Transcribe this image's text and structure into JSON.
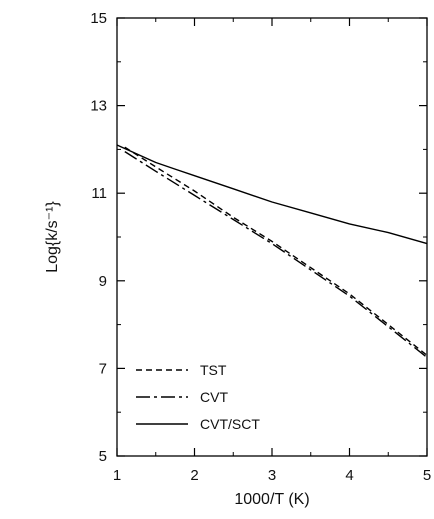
{
  "chart_data": {
    "type": "line",
    "xlabel": "1000/T (K)",
    "ylabel": "Log{k/s⁻¹}",
    "xlim": [
      1,
      5
    ],
    "ylim": [
      5,
      15
    ],
    "x_ticks": [
      "1",
      "2",
      "3",
      "4",
      "5"
    ],
    "y_ticks": [
      "5",
      "7",
      "9",
      "11",
      "13",
      "15"
    ],
    "grid": false,
    "legend_position": "bottom-left",
    "series": [
      {
        "name": "TST",
        "style": "dashed",
        "x": [
          1.1,
          1.5,
          2.0,
          2.5,
          3.0,
          3.5,
          4.0,
          4.5,
          5.0
        ],
        "y": [
          12.05,
          11.6,
          11.05,
          10.45,
          9.9,
          9.3,
          8.7,
          8.0,
          7.3
        ]
      },
      {
        "name": "CVT",
        "style": "dash-dot",
        "x": [
          1.1,
          1.5,
          2.0,
          2.5,
          3.0,
          3.5,
          4.0,
          4.5,
          5.0
        ],
        "y": [
          11.95,
          11.5,
          10.95,
          10.4,
          9.85,
          9.25,
          8.65,
          7.95,
          7.25
        ]
      },
      {
        "name": "CVT/SCT",
        "style": "solid",
        "x": [
          1.0,
          1.25,
          1.5,
          1.75,
          2.0,
          2.5,
          3.0,
          3.5,
          4.0,
          4.5,
          5.0
        ],
        "y": [
          12.1,
          11.9,
          11.7,
          11.55,
          11.4,
          11.1,
          10.8,
          10.55,
          10.3,
          10.1,
          9.85
        ]
      }
    ]
  }
}
